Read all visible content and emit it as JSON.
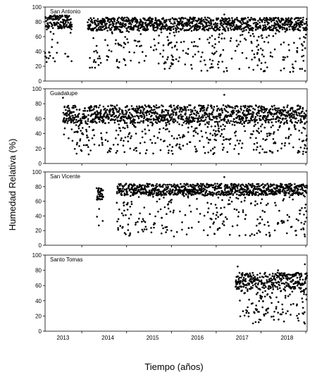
{
  "figure": {
    "ylabel": "Humedad Relativa (%)",
    "xlabel": "Tiempo (años)"
  },
  "chart_data": [
    {
      "type": "scatter",
      "panel_label": "San Antonio",
      "xlim": [
        2012.6,
        2018.45
      ],
      "ylim": [
        0,
        100
      ],
      "yticks": [
        0,
        20,
        40,
        60,
        80,
        100
      ],
      "xticks": [],
      "grid": false,
      "legend": "none",
      "series": [
        {
          "color": "#000000",
          "segments": [
            {
              "start": 2012.6,
              "end": 2013.2,
              "level": 80,
              "wet_spread": 9,
              "dry_low": 25,
              "dry_share": 0.28
            },
            {
              "start": 2013.55,
              "end": 2018.45,
              "level": 77,
              "wet_spread": 9,
              "dry_low": 12,
              "dry_share": 0.32
            }
          ],
          "sample_points": [
            {
              "x": 2012.7,
              "y": 84
            },
            {
              "x": 2012.9,
              "y": 78
            },
            {
              "x": 2013.1,
              "y": 33
            },
            {
              "x": 2013.6,
              "y": 18
            },
            {
              "x": 2013.8,
              "y": 72
            },
            {
              "x": 2014.7,
              "y": 25
            },
            {
              "x": 2015.4,
              "y": 20
            },
            {
              "x": 2016.3,
              "y": 83
            },
            {
              "x": 2016.6,
              "y": 90
            },
            {
              "x": 2017.5,
              "y": 14
            },
            {
              "x": 2018.3,
              "y": 85
            }
          ]
        }
      ]
    },
    {
      "type": "scatter",
      "panel_label": "Guadalupe",
      "xlim": [
        2012.6,
        2018.45
      ],
      "ylim": [
        0,
        100
      ],
      "yticks": [
        0,
        20,
        40,
        60,
        80,
        100
      ],
      "xticks": [],
      "grid": false,
      "legend": "none",
      "series": [
        {
          "color": "#000000",
          "segments": [
            {
              "start": 2013.0,
              "end": 2018.45,
              "level": 66,
              "wet_spread": 12,
              "dry_low": 12,
              "dry_share": 0.38
            }
          ],
          "sample_points": [
            {
              "x": 2013.0,
              "y": 88
            },
            {
              "x": 2013.4,
              "y": 18
            },
            {
              "x": 2014.0,
              "y": 15
            },
            {
              "x": 2014.5,
              "y": 20
            },
            {
              "x": 2015.6,
              "y": 22
            },
            {
              "x": 2016.6,
              "y": 92
            },
            {
              "x": 2017.5,
              "y": 15
            },
            {
              "x": 2018.4,
              "y": 25
            }
          ]
        }
      ]
    },
    {
      "type": "scatter",
      "panel_label": "San Vicente",
      "xlim": [
        2012.6,
        2018.45
      ],
      "ylim": [
        0,
        100
      ],
      "yticks": [
        0,
        20,
        40,
        60,
        80,
        100
      ],
      "xticks": [],
      "grid": false,
      "legend": "none",
      "series": [
        {
          "color": "#000000",
          "segments": [
            {
              "start": 2013.75,
              "end": 2013.9,
              "level": 70,
              "wet_spread": 8,
              "dry_low": 25,
              "dry_share": 0.15
            },
            {
              "start": 2014.2,
              "end": 2018.45,
              "level": 76,
              "wet_spread": 8,
              "dry_low": 12,
              "dry_share": 0.3
            }
          ],
          "sample_points": [
            {
              "x": 2013.8,
              "y": 78
            },
            {
              "x": 2013.8,
              "y": 27
            },
            {
              "x": 2014.4,
              "y": 15
            },
            {
              "x": 2016.6,
              "y": 93
            },
            {
              "x": 2017.4,
              "y": 18
            },
            {
              "x": 2018.4,
              "y": 12
            }
          ]
        }
      ]
    },
    {
      "type": "scatter",
      "panel_label": "Santo Tomas",
      "xlim": [
        2012.6,
        2018.45
      ],
      "ylim": [
        0,
        100
      ],
      "yticks": [
        0,
        20,
        40,
        60,
        80,
        100
      ],
      "xticks": [
        "2013",
        "2014",
        "2015",
        "2016",
        "2017",
        "2018"
      ],
      "grid": false,
      "legend": "none",
      "series": [
        {
          "color": "#000000",
          "segments": [
            {
              "start": 2016.85,
              "end": 2018.45,
              "level": 66,
              "wet_spread": 11,
              "dry_low": 10,
              "dry_share": 0.42
            }
          ],
          "sample_points": [
            {
              "x": 2016.9,
              "y": 85
            },
            {
              "x": 2017.3,
              "y": 12
            },
            {
              "x": 2017.8,
              "y": 80
            },
            {
              "x": 2018.4,
              "y": 10
            },
            {
              "x": 2018.4,
              "y": 88
            }
          ]
        }
      ]
    }
  ]
}
